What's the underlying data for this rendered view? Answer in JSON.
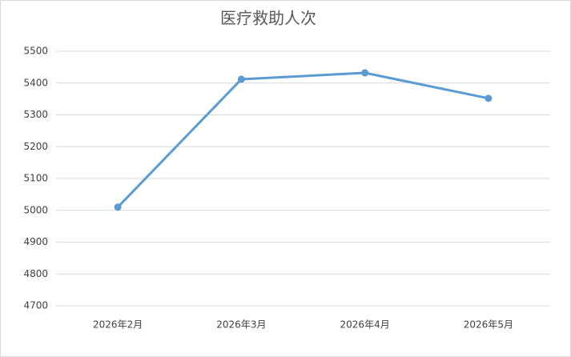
{
  "chart_data": {
    "type": "line",
    "title": "医疗救助人次",
    "categories": [
      "2026年2月",
      "2026年3月",
      "2026年4月",
      "2026年5月"
    ],
    "series": [
      {
        "name": "医疗救助人次",
        "color": "#5b9bd5",
        "values": [
          5010,
          5412,
          5432,
          5352
        ]
      }
    ],
    "ylim": [
      4700,
      5500
    ],
    "yticks": [
      4700,
      4800,
      4900,
      5000,
      5100,
      5200,
      5300,
      5400,
      5500
    ],
    "grid": true
  }
}
